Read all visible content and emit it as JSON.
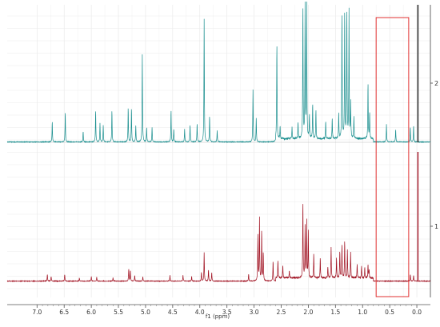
{
  "chart_data": {
    "type": "line",
    "title": "",
    "xlabel": "f1 (ppm)",
    "ylabel": "",
    "x_reversed": true,
    "xlim": [
      7.55,
      -0.25
    ],
    "x_ticks": [
      "7.0",
      "6.5",
      "6.0",
      "5.5",
      "5.0",
      "4.5",
      "4.0",
      "3.5",
      "3.0",
      "2.5",
      "2.0",
      "1.5",
      "1.0",
      "0.5",
      "0.0"
    ],
    "x_tick_values": [
      7.0,
      6.5,
      6.0,
      5.5,
      5.0,
      4.5,
      4.0,
      3.5,
      3.0,
      2.5,
      2.0,
      1.5,
      1.0,
      0.5,
      0.0
    ],
    "grid": true,
    "highlight_region": {
      "x_from": 0.75,
      "x_to": 0.15,
      "color": "#e03030"
    },
    "series": [
      {
        "name": "2",
        "color": "#1a8f8f",
        "peaks": [
          [
            6.72,
            0.35
          ],
          [
            6.48,
            0.52
          ],
          [
            6.15,
            0.18
          ],
          [
            5.92,
            0.55
          ],
          [
            5.84,
            0.32
          ],
          [
            5.78,
            0.28
          ],
          [
            5.62,
            0.55
          ],
          [
            5.32,
            0.6
          ],
          [
            5.26,
            0.58
          ],
          [
            5.18,
            0.28
          ],
          [
            5.06,
            1.5
          ],
          [
            4.98,
            0.25
          ],
          [
            4.88,
            0.25
          ],
          [
            4.53,
            0.55
          ],
          [
            4.48,
            0.22
          ],
          [
            4.28,
            0.22
          ],
          [
            4.18,
            0.3
          ],
          [
            4.05,
            0.32
          ],
          [
            3.92,
            2.1
          ],
          [
            3.82,
            0.45
          ],
          [
            3.68,
            0.2
          ],
          [
            3.02,
            0.9
          ],
          [
            2.96,
            0.4
          ],
          [
            2.58,
            1.65
          ],
          [
            2.52,
            0.2
          ],
          [
            2.3,
            0.2
          ],
          [
            2.19,
            0.28
          ],
          [
            2.1,
            2.3
          ],
          [
            2.06,
            2.3
          ],
          [
            2.03,
            2.3
          ],
          [
            1.98,
            0.4
          ],
          [
            1.92,
            0.6
          ],
          [
            1.86,
            0.5
          ],
          [
            1.68,
            0.3
          ],
          [
            1.56,
            0.35
          ],
          [
            1.44,
            0.45
          ],
          [
            1.38,
            2.2
          ],
          [
            1.33,
            2.2
          ],
          [
            1.29,
            2.2
          ],
          [
            1.25,
            2.2
          ],
          [
            1.22,
            0.6
          ],
          [
            1.16,
            0.38
          ],
          [
            0.9,
            0.95
          ],
          [
            0.87,
            0.45
          ],
          [
            0.56,
            0.3
          ],
          [
            0.39,
            0.22
          ],
          [
            0.12,
            0.25
          ],
          [
            0.06,
            0.28
          ]
        ]
      },
      {
        "name": "1",
        "color": "#a01020",
        "peaks": [
          [
            6.81,
            0.12
          ],
          [
            6.74,
            0.08
          ],
          [
            6.49,
            0.12
          ],
          [
            6.22,
            0.05
          ],
          [
            6.0,
            0.08
          ],
          [
            5.9,
            0.07
          ],
          [
            5.6,
            0.06
          ],
          [
            5.31,
            0.22
          ],
          [
            5.28,
            0.18
          ],
          [
            5.2,
            0.1
          ],
          [
            5.05,
            0.08
          ],
          [
            4.55,
            0.1
          ],
          [
            4.31,
            0.1
          ],
          [
            4.15,
            0.08
          ],
          [
            3.97,
            0.15
          ],
          [
            3.92,
            0.5
          ],
          [
            3.84,
            0.2
          ],
          [
            3.78,
            0.15
          ],
          [
            3.1,
            0.12
          ],
          [
            2.93,
            0.8
          ],
          [
            2.9,
            1.1
          ],
          [
            2.86,
            0.9
          ],
          [
            2.83,
            0.5
          ],
          [
            2.65,
            0.35
          ],
          [
            2.56,
            0.3
          ],
          [
            2.47,
            0.22
          ],
          [
            2.35,
            0.12
          ],
          [
            2.1,
            1.35
          ],
          [
            2.06,
            0.9
          ],
          [
            2.03,
            1.0
          ],
          [
            2.0,
            0.8
          ],
          [
            1.9,
            0.42
          ],
          [
            1.78,
            0.35
          ],
          [
            1.64,
            0.2
          ],
          [
            1.58,
            0.55
          ],
          [
            1.48,
            0.35
          ],
          [
            1.42,
            0.48
          ],
          [
            1.38,
            0.6
          ],
          [
            1.33,
            0.65
          ],
          [
            1.28,
            0.5
          ],
          [
            1.22,
            0.45
          ],
          [
            1.1,
            0.25
          ],
          [
            1.02,
            0.2
          ],
          [
            0.96,
            0.18
          ],
          [
            0.9,
            0.22
          ],
          [
            0.88,
            0.15
          ],
          [
            0.12,
            0.12
          ],
          [
            0.06,
            0.1
          ]
        ]
      }
    ]
  }
}
